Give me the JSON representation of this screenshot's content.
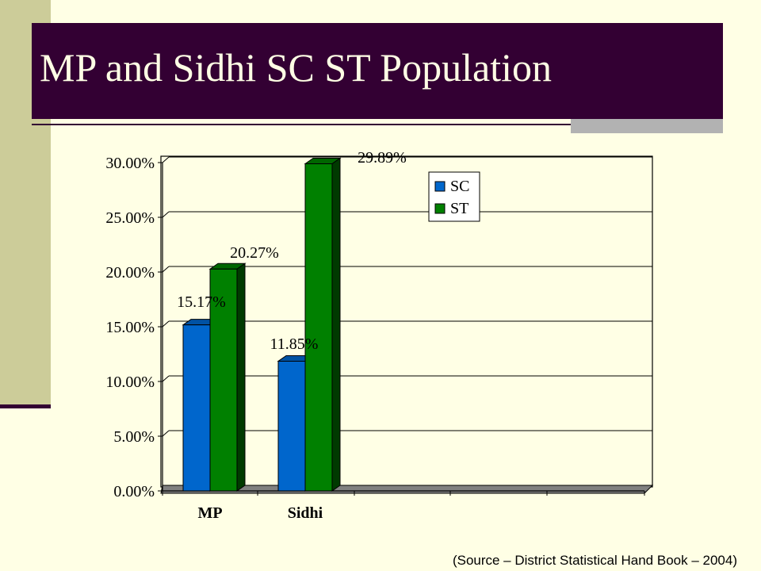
{
  "slide": {
    "title": "MP and Sidhi SC ST Population",
    "source": "(Source – District Statistical Hand Book – 2004)"
  },
  "chart_data": {
    "type": "bar",
    "categories": [
      "MP",
      "Sidhi"
    ],
    "series": [
      {
        "name": "SC",
        "values": [
          15.17,
          11.85
        ],
        "labels": [
          "15.17%",
          "11.85%"
        ],
        "color": "#0066CC"
      },
      {
        "name": "ST",
        "values": [
          20.27,
          29.89
        ],
        "labels": [
          "20.27%",
          "29.89%"
        ],
        "color": "#008000"
      }
    ],
    "y_ticks": [
      "0.00%",
      "5.00%",
      "10.00%",
      "15.00%",
      "20.00%",
      "25.00%",
      "30.00%"
    ],
    "ylim": [
      0,
      30
    ],
    "grid": true,
    "legend": "top-right",
    "three_d": true
  }
}
